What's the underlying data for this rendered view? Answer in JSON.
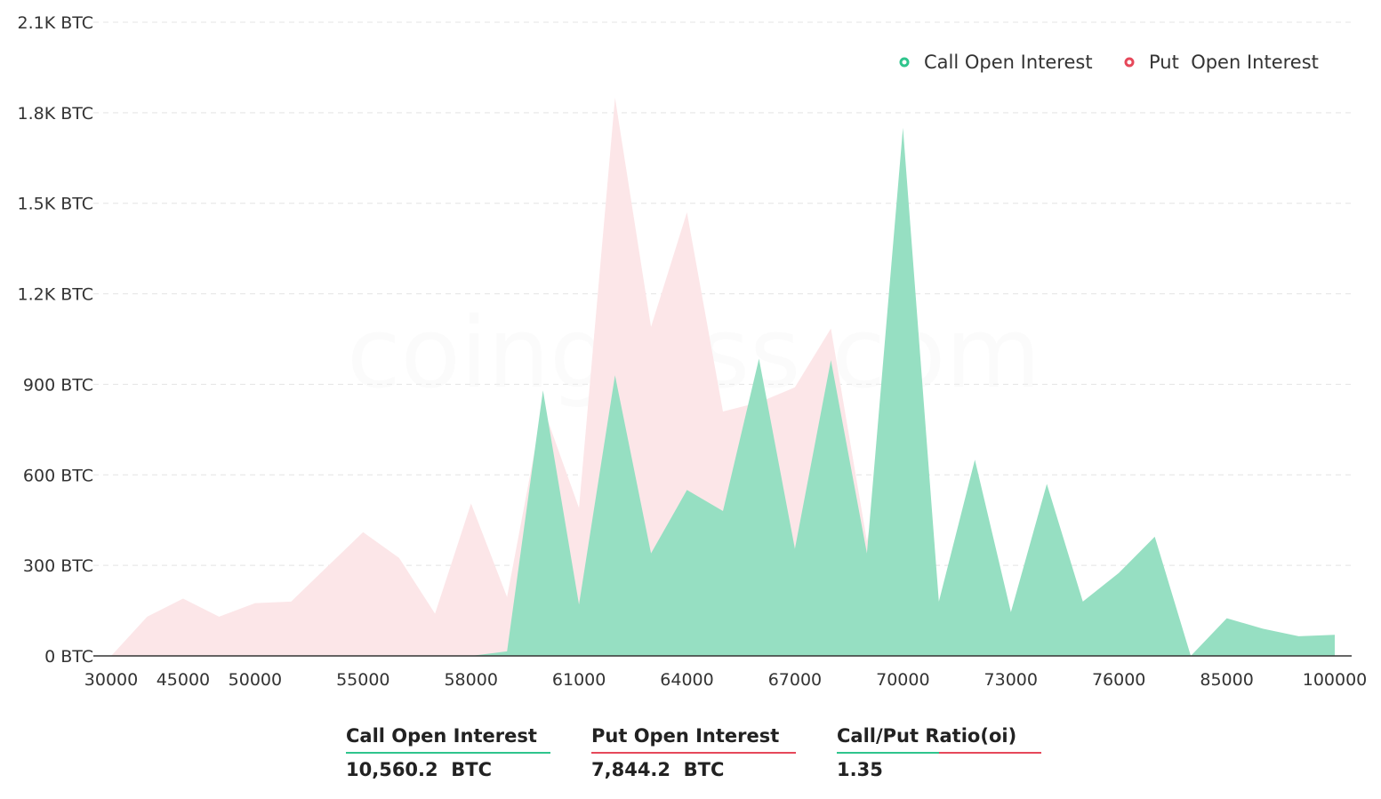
{
  "chart_data": {
    "type": "area",
    "title": "",
    "xlabel": "",
    "ylabel": "",
    "ylim": [
      0,
      2100
    ],
    "y_ticks": [
      "0 BTC",
      "300 BTC",
      "600 BTC",
      "900 BTC",
      "1.2K BTC",
      "1.5K BTC",
      "1.8K BTC",
      "2.1K BTC"
    ],
    "y_tick_values": [
      0,
      300,
      600,
      900,
      1200,
      1500,
      1800,
      2100
    ],
    "x_tick_labels": [
      "30000",
      "45000",
      "50000",
      "55000",
      "58000",
      "61000",
      "64000",
      "67000",
      "70000",
      "73000",
      "76000",
      "85000",
      "100000"
    ],
    "x_categories": [
      "30000",
      "40000",
      "45000",
      "48000",
      "50000",
      "52000",
      "54000",
      "55000",
      "56000",
      "57000",
      "58000",
      "59000",
      "60000",
      "61000",
      "62000",
      "63000",
      "64000",
      "65000",
      "66000",
      "67000",
      "68000",
      "69000",
      "70000",
      "71000",
      "72000",
      "73000",
      "74000",
      "75000",
      "76000",
      "77000",
      "80000",
      "85000",
      "90000",
      "95000",
      "100000"
    ],
    "grid": true,
    "legend_position": "top-right",
    "series": [
      {
        "name": "Call Open Interest",
        "color": "#96dfc2",
        "values": [
          0,
          0,
          0,
          0,
          0,
          0,
          0,
          0,
          0,
          0,
          0,
          15,
          880,
          170,
          930,
          340,
          550,
          480,
          985,
          355,
          980,
          340,
          1750,
          180,
          650,
          145,
          570,
          180,
          275,
          395,
          0,
          125,
          90,
          65,
          70
        ]
      },
      {
        "name": "Put  Open Interest",
        "color": "#fce6e8",
        "values": [
          0,
          130,
          190,
          130,
          175,
          180,
          295,
          410,
          325,
          140,
          505,
          195,
          825,
          490,
          1850,
          1090,
          1470,
          810,
          840,
          890,
          1085,
          380,
          990,
          0,
          0,
          0,
          0,
          0,
          0,
          0,
          0,
          0,
          0,
          0,
          0
        ]
      }
    ]
  },
  "legend": {
    "call_label": "Call Open Interest",
    "put_label": "Put  Open Interest",
    "call_color": "#2fc58d",
    "put_color": "#e6485a"
  },
  "watermark": "coinglass.com",
  "summary": {
    "call_label": "Call Open Interest",
    "call_value": "10,560.2  BTC",
    "put_label": "Put Open Interest",
    "put_value": "7,844.2  BTC",
    "ratio_label": "Call/Put Ratio(oi)",
    "ratio_value": "1.35"
  }
}
